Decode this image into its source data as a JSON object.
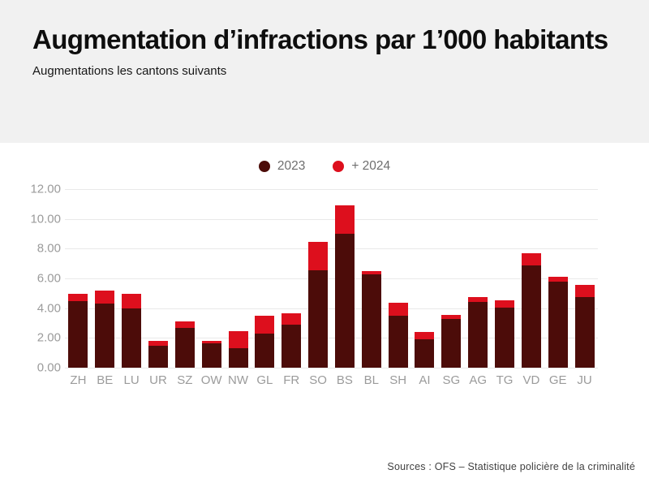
{
  "header": {
    "title": "Augmentation d’infractions par 1’000 habitants",
    "subtitle": "Augmentations les cantons suivants"
  },
  "footer": {
    "source": "Sources : OFS – Statistique policière de la criminalité"
  },
  "colors": {
    "color_2023": "#4c0c09",
    "color_2024": "#dd0f1d",
    "grid": "#e9e9e9",
    "axis_text": "#9b9b9b",
    "header_bg": "#f1f1f1"
  },
  "chart_data": {
    "type": "bar",
    "stacked": true,
    "title": "Augmentation d’infractions par 1’000 habitants",
    "subtitle": "Augmentations les cantons suivants",
    "categories": [
      "ZH",
      "BE",
      "LU",
      "UR",
      "SZ",
      "OW",
      "NW",
      "GL",
      "FR",
      "SO",
      "BS",
      "BL",
      "SH",
      "AI",
      "SG",
      "AG",
      "TG",
      "VD",
      "GE",
      "JU"
    ],
    "series": [
      {
        "name": "2023",
        "color": "#4c0c09",
        "values": [
          4.45,
          4.3,
          4.0,
          1.45,
          2.65,
          1.65,
          1.3,
          2.3,
          2.9,
          6.55,
          9.0,
          6.3,
          3.5,
          1.9,
          3.3,
          4.4,
          4.05,
          6.9,
          5.8,
          4.75
        ]
      },
      {
        "name": "+ 2024",
        "color": "#dd0f1d",
        "values": [
          0.5,
          0.9,
          0.95,
          0.35,
          0.45,
          0.15,
          1.15,
          1.2,
          0.75,
          1.9,
          1.9,
          0.2,
          0.85,
          0.5,
          0.25,
          0.35,
          0.5,
          0.8,
          0.3,
          0.8
        ]
      }
    ],
    "ylim": [
      0,
      12
    ],
    "yticks": [
      0,
      2,
      4,
      6,
      8,
      10,
      12
    ],
    "ytick_labels": [
      "0.00",
      "2.00",
      "4.00",
      "6.00",
      "8.00",
      "10.00",
      "12.00"
    ],
    "xlabel": "",
    "ylabel": "",
    "grid": true,
    "legend_position": "top-center"
  }
}
